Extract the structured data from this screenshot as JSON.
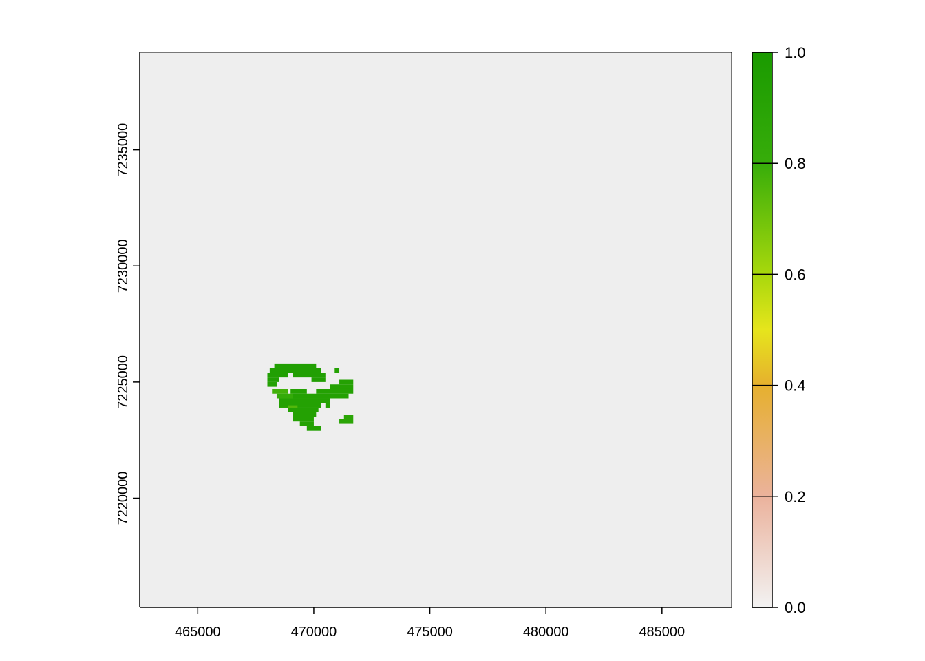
{
  "chart_data": {
    "type": "heatmap",
    "title": "",
    "xlabel": "",
    "ylabel": "",
    "xlim": [
      462500,
      488000
    ],
    "ylim": [
      7215300,
      7239200
    ],
    "x_ticks": [
      465000,
      470000,
      475000,
      480000,
      485000
    ],
    "x_tick_labels": [
      "465000",
      "470000",
      "475000",
      "480000",
      "485000"
    ],
    "y_ticks": [
      7220000,
      7225000,
      7230000,
      7235000
    ],
    "y_tick_labels": [
      "7220000",
      "7225000",
      "7230000",
      "7235000"
    ],
    "background_color": "#eeeeee",
    "grid": false,
    "legend": {
      "placement": "right",
      "range": [
        0,
        1
      ],
      "ticks": [
        0.0,
        0.2,
        0.4,
        0.6,
        0.8,
        1.0
      ],
      "tick_labels": [
        "0.0",
        "0.2",
        "0.4",
        "0.6",
        "0.8",
        "1.0"
      ],
      "colors": [
        {
          "value": 0.0,
          "color": "#f2f2f2"
        },
        {
          "value": 0.2,
          "color": "#ebb29c"
        },
        {
          "value": 0.4,
          "color": "#e6b02e"
        },
        {
          "value": 0.5,
          "color": "#e6e51c"
        },
        {
          "value": 0.6,
          "color": "#a8d80c"
        },
        {
          "value": 0.8,
          "color": "#37ad0a"
        },
        {
          "value": 1.0,
          "color": "#1a9a00"
        }
      ]
    },
    "cell_size": 200,
    "value_ranges": [
      {
        "x0": 468300,
        "x1": 470100,
        "y": 7225600,
        "value": 0.95
      },
      {
        "x0": 468100,
        "x1": 470300,
        "y": 7225400,
        "value": 0.95
      },
      {
        "x0": 470900,
        "x1": 471100,
        "y": 7225400,
        "value": 0.93
      },
      {
        "x0": 468000,
        "x1": 468900,
        "y": 7225200,
        "value": 0.95
      },
      {
        "x0": 469100,
        "x1": 470500,
        "y": 7225200,
        "value": 0.95
      },
      {
        "x0": 468000,
        "x1": 468500,
        "y": 7225000,
        "value": 0.95
      },
      {
        "x0": 469900,
        "x1": 470500,
        "y": 7225000,
        "value": 0.95
      },
      {
        "x0": 471100,
        "x1": 471700,
        "y": 7224900,
        "value": 0.93
      },
      {
        "x0": 468000,
        "x1": 468400,
        "y": 7224800,
        "value": 0.93
      },
      {
        "x0": 470700,
        "x1": 471700,
        "y": 7224700,
        "value": 0.93
      },
      {
        "x0": 468200,
        "x1": 468900,
        "y": 7224500,
        "value": 0.78
      },
      {
        "x0": 469000,
        "x1": 469700,
        "y": 7224500,
        "value": 0.93
      },
      {
        "x0": 470100,
        "x1": 471700,
        "y": 7224500,
        "value": 0.93
      },
      {
        "x0": 468400,
        "x1": 469100,
        "y": 7224300,
        "value": 0.82
      },
      {
        "x0": 469100,
        "x1": 471500,
        "y": 7224300,
        "value": 0.93
      },
      {
        "x0": 468500,
        "x1": 470700,
        "y": 7224100,
        "value": 0.93
      },
      {
        "x0": 468500,
        "x1": 470300,
        "y": 7223900,
        "value": 0.93
      },
      {
        "x0": 470500,
        "x1": 470700,
        "y": 7223900,
        "value": 0.93
      },
      {
        "x0": 468900,
        "x1": 469300,
        "y": 7223800,
        "value": 0.75
      },
      {
        "x0": 468900,
        "x1": 470200,
        "y": 7223700,
        "value": 0.93
      },
      {
        "x0": 469100,
        "x1": 470100,
        "y": 7223500,
        "value": 0.93
      },
      {
        "x0": 471300,
        "x1": 471700,
        "y": 7223400,
        "value": 0.88
      },
      {
        "x0": 469100,
        "x1": 470000,
        "y": 7223300,
        "value": 0.93
      },
      {
        "x0": 471100,
        "x1": 471700,
        "y": 7223200,
        "value": 0.88
      },
      {
        "x0": 469400,
        "x1": 470000,
        "y": 7223100,
        "value": 0.93
      },
      {
        "x0": 469700,
        "x1": 470300,
        "y": 7222900,
        "value": 0.93
      }
    ]
  }
}
